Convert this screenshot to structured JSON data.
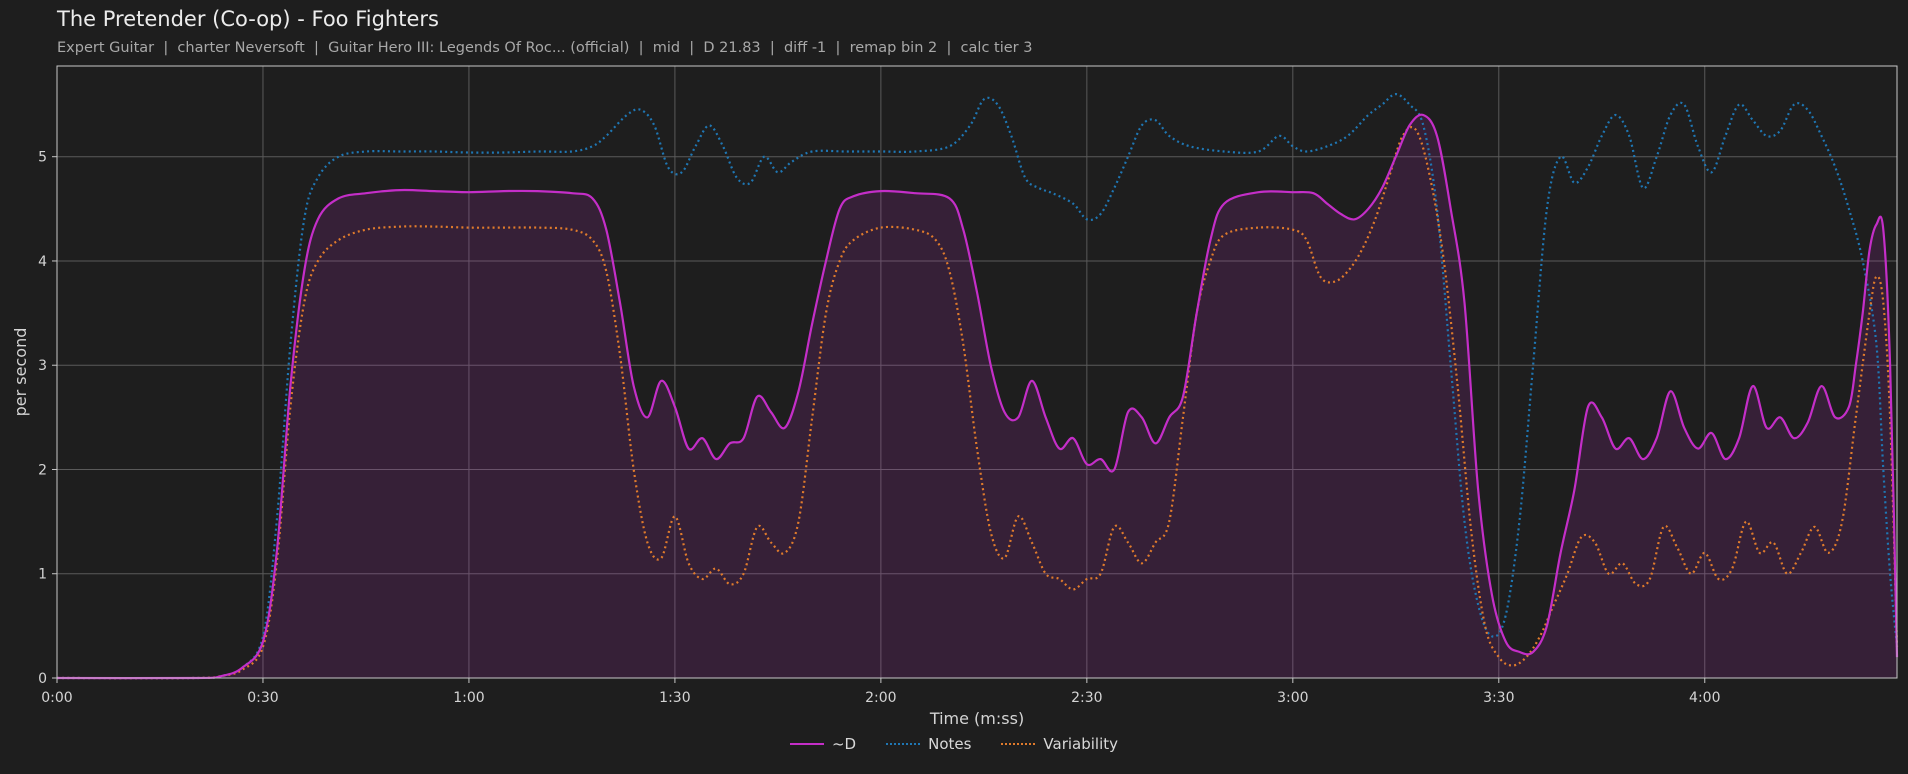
{
  "title": "The Pretender (Co-op) - Foo Fighters",
  "subtitle": "Expert Guitar  |  charter Neversoft  |  Guitar Hero III: Legends Of Roc... (official)  |  mid  |  D 21.83  |  diff -1  |  remap bin 2  |  calc tier 3",
  "chart_data": {
    "type": "line",
    "xlabel": "Time (m:ss)",
    "ylabel": "per second",
    "xlim": [
      0,
      268
    ],
    "ylim": [
      0,
      5.87
    ],
    "xticks": [
      0,
      30,
      60,
      90,
      120,
      150,
      180,
      210,
      240
    ],
    "xtick_labels": [
      "0:00",
      "0:30",
      "1:00",
      "1:30",
      "2:00",
      "2:30",
      "3:00",
      "3:30",
      "4:00"
    ],
    "yticks": [
      0,
      1,
      2,
      3,
      4,
      5
    ],
    "grid": true,
    "legend_position": "bottom-center",
    "series": [
      {
        "name": "~D",
        "color": "#c42ec8",
        "style": "solid",
        "filled": true,
        "points": [
          [
            0,
            0
          ],
          [
            20,
            0
          ],
          [
            24,
            0.02
          ],
          [
            27,
            0.1
          ],
          [
            30,
            0.35
          ],
          [
            32,
            1.2
          ],
          [
            34,
            2.8
          ],
          [
            36,
            3.9
          ],
          [
            38,
            4.4
          ],
          [
            41,
            4.6
          ],
          [
            45,
            4.65
          ],
          [
            50,
            4.68
          ],
          [
            55,
            4.67
          ],
          [
            60,
            4.66
          ],
          [
            65,
            4.67
          ],
          [
            70,
            4.67
          ],
          [
            75,
            4.65
          ],
          [
            78,
            4.6
          ],
          [
            80,
            4.3
          ],
          [
            82,
            3.6
          ],
          [
            84,
            2.8
          ],
          [
            86,
            2.5
          ],
          [
            88,
            2.85
          ],
          [
            90,
            2.6
          ],
          [
            92,
            2.2
          ],
          [
            94,
            2.3
          ],
          [
            96,
            2.1
          ],
          [
            98,
            2.25
          ],
          [
            100,
            2.3
          ],
          [
            102,
            2.7
          ],
          [
            104,
            2.55
          ],
          [
            106,
            2.4
          ],
          [
            108,
            2.75
          ],
          [
            110,
            3.4
          ],
          [
            112,
            4.0
          ],
          [
            114,
            4.5
          ],
          [
            116,
            4.62
          ],
          [
            120,
            4.67
          ],
          [
            125,
            4.65
          ],
          [
            130,
            4.6
          ],
          [
            132,
            4.3
          ],
          [
            134,
            3.7
          ],
          [
            136,
            3.0
          ],
          [
            138,
            2.55
          ],
          [
            140,
            2.5
          ],
          [
            142,
            2.85
          ],
          [
            144,
            2.5
          ],
          [
            146,
            2.2
          ],
          [
            148,
            2.3
          ],
          [
            150,
            2.05
          ],
          [
            152,
            2.1
          ],
          [
            154,
            2.0
          ],
          [
            156,
            2.55
          ],
          [
            158,
            2.5
          ],
          [
            160,
            2.25
          ],
          [
            162,
            2.5
          ],
          [
            164,
            2.7
          ],
          [
            166,
            3.5
          ],
          [
            168,
            4.2
          ],
          [
            170,
            4.55
          ],
          [
            175,
            4.66
          ],
          [
            180,
            4.66
          ],
          [
            183,
            4.65
          ],
          [
            185,
            4.55
          ],
          [
            187,
            4.45
          ],
          [
            189,
            4.4
          ],
          [
            191,
            4.5
          ],
          [
            193,
            4.7
          ],
          [
            195,
            5.0
          ],
          [
            197,
            5.3
          ],
          [
            199,
            5.4
          ],
          [
            201,
            5.2
          ],
          [
            203,
            4.5
          ],
          [
            205,
            3.6
          ],
          [
            207,
            1.8
          ],
          [
            209,
            0.8
          ],
          [
            211,
            0.35
          ],
          [
            213,
            0.25
          ],
          [
            215,
            0.25
          ],
          [
            217,
            0.5
          ],
          [
            219,
            1.2
          ],
          [
            221,
            1.8
          ],
          [
            223,
            2.6
          ],
          [
            225,
            2.5
          ],
          [
            227,
            2.2
          ],
          [
            229,
            2.3
          ],
          [
            231,
            2.1
          ],
          [
            233,
            2.3
          ],
          [
            235,
            2.75
          ],
          [
            237,
            2.4
          ],
          [
            239,
            2.2
          ],
          [
            241,
            2.35
          ],
          [
            243,
            2.1
          ],
          [
            245,
            2.3
          ],
          [
            247,
            2.8
          ],
          [
            249,
            2.4
          ],
          [
            251,
            2.5
          ],
          [
            253,
            2.3
          ],
          [
            255,
            2.45
          ],
          [
            257,
            2.8
          ],
          [
            259,
            2.5
          ],
          [
            261,
            2.6
          ],
          [
            262,
            3.0
          ],
          [
            263,
            3.5
          ],
          [
            264,
            4.1
          ],
          [
            265,
            4.35
          ],
          [
            266,
            4.3
          ],
          [
            267,
            3.0
          ],
          [
            268,
            0.2
          ]
        ]
      },
      {
        "name": "Notes",
        "color": "#1f77b4",
        "style": "dotted",
        "filled": false,
        "points": [
          [
            0,
            0
          ],
          [
            20,
            0
          ],
          [
            24,
            0.02
          ],
          [
            27,
            0.1
          ],
          [
            30,
            0.4
          ],
          [
            32,
            1.5
          ],
          [
            34,
            3.2
          ],
          [
            36,
            4.4
          ],
          [
            38,
            4.8
          ],
          [
            41,
            5.0
          ],
          [
            45,
            5.05
          ],
          [
            50,
            5.05
          ],
          [
            55,
            5.05
          ],
          [
            60,
            5.04
          ],
          [
            65,
            5.04
          ],
          [
            70,
            5.05
          ],
          [
            75,
            5.05
          ],
          [
            78,
            5.1
          ],
          [
            80,
            5.2
          ],
          [
            83,
            5.4
          ],
          [
            85,
            5.45
          ],
          [
            87,
            5.3
          ],
          [
            89,
            4.9
          ],
          [
            91,
            4.85
          ],
          [
            93,
            5.1
          ],
          [
            95,
            5.3
          ],
          [
            97,
            5.1
          ],
          [
            99,
            4.8
          ],
          [
            101,
            4.75
          ],
          [
            103,
            5.0
          ],
          [
            105,
            4.85
          ],
          [
            107,
            4.95
          ],
          [
            110,
            5.05
          ],
          [
            115,
            5.05
          ],
          [
            120,
            5.05
          ],
          [
            125,
            5.05
          ],
          [
            130,
            5.1
          ],
          [
            133,
            5.3
          ],
          [
            135,
            5.55
          ],
          [
            137,
            5.5
          ],
          [
            139,
            5.2
          ],
          [
            141,
            4.8
          ],
          [
            143,
            4.7
          ],
          [
            145,
            4.65
          ],
          [
            148,
            4.55
          ],
          [
            150,
            4.4
          ],
          [
            152,
            4.45
          ],
          [
            154,
            4.7
          ],
          [
            156,
            5.0
          ],
          [
            158,
            5.3
          ],
          [
            160,
            5.35
          ],
          [
            162,
            5.2
          ],
          [
            165,
            5.1
          ],
          [
            170,
            5.05
          ],
          [
            175,
            5.05
          ],
          [
            178,
            5.2
          ],
          [
            180,
            5.1
          ],
          [
            182,
            5.05
          ],
          [
            185,
            5.1
          ],
          [
            188,
            5.2
          ],
          [
            191,
            5.4
          ],
          [
            193,
            5.5
          ],
          [
            195,
            5.6
          ],
          [
            197,
            5.5
          ],
          [
            199,
            5.3
          ],
          [
            201,
            4.5
          ],
          [
            203,
            3.0
          ],
          [
            205,
            1.5
          ],
          [
            207,
            0.7
          ],
          [
            209,
            0.4
          ],
          [
            211,
            0.6
          ],
          [
            213,
            1.5
          ],
          [
            215,
            3.0
          ],
          [
            217,
            4.5
          ],
          [
            219,
            5.0
          ],
          [
            221,
            4.75
          ],
          [
            223,
            4.9
          ],
          [
            225,
            5.2
          ],
          [
            227,
            5.4
          ],
          [
            229,
            5.2
          ],
          [
            231,
            4.7
          ],
          [
            233,
            5.0
          ],
          [
            235,
            5.4
          ],
          [
            237,
            5.5
          ],
          [
            239,
            5.1
          ],
          [
            241,
            4.85
          ],
          [
            243,
            5.2
          ],
          [
            245,
            5.5
          ],
          [
            247,
            5.35
          ],
          [
            249,
            5.2
          ],
          [
            251,
            5.25
          ],
          [
            253,
            5.5
          ],
          [
            255,
            5.45
          ],
          [
            257,
            5.2
          ],
          [
            259,
            4.9
          ],
          [
            261,
            4.5
          ],
          [
            263,
            4.0
          ],
          [
            265,
            3.2
          ],
          [
            266,
            2.0
          ],
          [
            267,
            1.0
          ],
          [
            268,
            0.3
          ]
        ]
      },
      {
        "name": "Variability",
        "color": "#e07b2c",
        "style": "dotted",
        "filled": false,
        "points": [
          [
            0,
            0
          ],
          [
            20,
            0
          ],
          [
            24,
            0.02
          ],
          [
            27,
            0.08
          ],
          [
            30,
            0.3
          ],
          [
            32,
            1.1
          ],
          [
            34,
            2.6
          ],
          [
            36,
            3.6
          ],
          [
            38,
            4.0
          ],
          [
            41,
            4.2
          ],
          [
            45,
            4.3
          ],
          [
            50,
            4.33
          ],
          [
            55,
            4.33
          ],
          [
            60,
            4.32
          ],
          [
            65,
            4.32
          ],
          [
            70,
            4.32
          ],
          [
            75,
            4.3
          ],
          [
            78,
            4.2
          ],
          [
            80,
            3.9
          ],
          [
            82,
            3.1
          ],
          [
            84,
            2.0
          ],
          [
            86,
            1.3
          ],
          [
            88,
            1.15
          ],
          [
            90,
            1.55
          ],
          [
            92,
            1.1
          ],
          [
            94,
            0.95
          ],
          [
            96,
            1.05
          ],
          [
            98,
            0.9
          ],
          [
            100,
            1.0
          ],
          [
            102,
            1.45
          ],
          [
            104,
            1.3
          ],
          [
            106,
            1.2
          ],
          [
            108,
            1.5
          ],
          [
            110,
            2.5
          ],
          [
            112,
            3.5
          ],
          [
            114,
            4.0
          ],
          [
            116,
            4.2
          ],
          [
            120,
            4.32
          ],
          [
            125,
            4.3
          ],
          [
            128,
            4.2
          ],
          [
            130,
            3.9
          ],
          [
            132,
            3.2
          ],
          [
            134,
            2.2
          ],
          [
            136,
            1.4
          ],
          [
            138,
            1.15
          ],
          [
            140,
            1.55
          ],
          [
            142,
            1.3
          ],
          [
            144,
            1.0
          ],
          [
            146,
            0.95
          ],
          [
            148,
            0.85
          ],
          [
            150,
            0.95
          ],
          [
            152,
            1.0
          ],
          [
            154,
            1.45
          ],
          [
            156,
            1.3
          ],
          [
            158,
            1.1
          ],
          [
            160,
            1.3
          ],
          [
            162,
            1.5
          ],
          [
            164,
            2.5
          ],
          [
            166,
            3.5
          ],
          [
            168,
            4.0
          ],
          [
            170,
            4.25
          ],
          [
            175,
            4.32
          ],
          [
            180,
            4.3
          ],
          [
            182,
            4.2
          ],
          [
            184,
            3.85
          ],
          [
            186,
            3.8
          ],
          [
            188,
            3.9
          ],
          [
            190,
            4.1
          ],
          [
            192,
            4.4
          ],
          [
            194,
            4.8
          ],
          [
            196,
            5.2
          ],
          [
            198,
            5.25
          ],
          [
            200,
            4.8
          ],
          [
            202,
            4.0
          ],
          [
            204,
            2.8
          ],
          [
            206,
            1.4
          ],
          [
            208,
            0.5
          ],
          [
            210,
            0.2
          ],
          [
            212,
            0.12
          ],
          [
            214,
            0.2
          ],
          [
            216,
            0.4
          ],
          [
            218,
            0.7
          ],
          [
            220,
            1.0
          ],
          [
            222,
            1.35
          ],
          [
            224,
            1.3
          ],
          [
            226,
            1.0
          ],
          [
            228,
            1.1
          ],
          [
            230,
            0.9
          ],
          [
            232,
            0.95
          ],
          [
            234,
            1.45
          ],
          [
            236,
            1.25
          ],
          [
            238,
            1.0
          ],
          [
            240,
            1.2
          ],
          [
            242,
            0.95
          ],
          [
            244,
            1.05
          ],
          [
            246,
            1.5
          ],
          [
            248,
            1.2
          ],
          [
            250,
            1.3
          ],
          [
            252,
            1.0
          ],
          [
            254,
            1.2
          ],
          [
            256,
            1.45
          ],
          [
            258,
            1.2
          ],
          [
            260,
            1.5
          ],
          [
            262,
            2.5
          ],
          [
            264,
            3.5
          ],
          [
            265,
            3.85
          ],
          [
            266,
            3.6
          ],
          [
            267,
            2.5
          ],
          [
            268,
            0.3
          ]
        ]
      }
    ]
  }
}
